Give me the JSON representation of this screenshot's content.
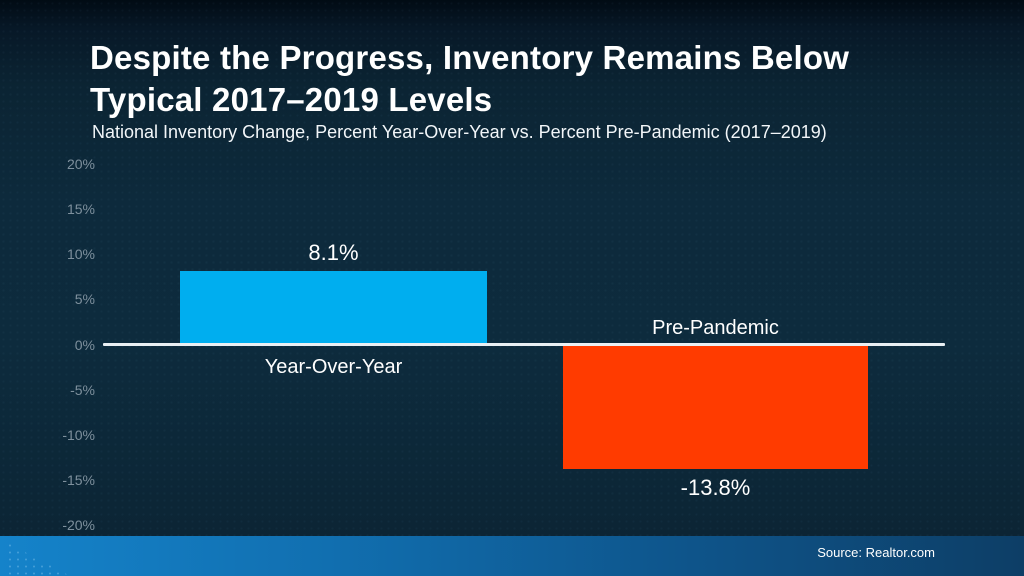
{
  "header": {
    "title": "Despite the Progress, Inventory Remains Below\nTypical 2017–2019 Levels",
    "subtitle": "National Inventory Change, Percent Year-Over-Year vs. Percent Pre-Pandemic (2017–2019)"
  },
  "chart_data": {
    "type": "bar",
    "title": "Despite the Progress, Inventory Remains Below Typical 2017–2019 Levels",
    "subtitle": "National Inventory Change, Percent Year-Over-Year vs. Percent Pre-Pandemic (2017–2019)",
    "categories": [
      "Year-Over-Year",
      "Pre-Pandemic"
    ],
    "values": [
      8.1,
      -13.8
    ],
    "value_labels": [
      "8.1%",
      "-13.8%"
    ],
    "ylim": [
      -20,
      20
    ],
    "ytick_step": 5,
    "yticks": [
      {
        "value": 20,
        "label": "20%"
      },
      {
        "value": 15,
        "label": "15%"
      },
      {
        "value": 10,
        "label": "10%"
      },
      {
        "value": 5,
        "label": "5%"
      },
      {
        "value": 0,
        "label": "0%"
      },
      {
        "value": -5,
        "label": "-5%"
      },
      {
        "value": -10,
        "label": "-10%"
      },
      {
        "value": -15,
        "label": "-15%"
      },
      {
        "value": -20,
        "label": "-20%"
      }
    ],
    "grid": false,
    "legend": "none",
    "bar_colors": [
      "#00AEEF",
      "#FF3B00"
    ]
  },
  "footer": {
    "source": "Source: Realtor.com"
  },
  "colors": {
    "background_mid": "#0D2A3C",
    "background_top": "#010B14",
    "title_text": "#FFFFFF",
    "tick_text": "#7E909D",
    "axis_line": "#E9EFF3",
    "bar_positive": "#00AEEF",
    "bar_negative": "#FF3B00",
    "footer_gradient_left": "#1583CA",
    "footer_gradient_right": "#0D3E66"
  }
}
